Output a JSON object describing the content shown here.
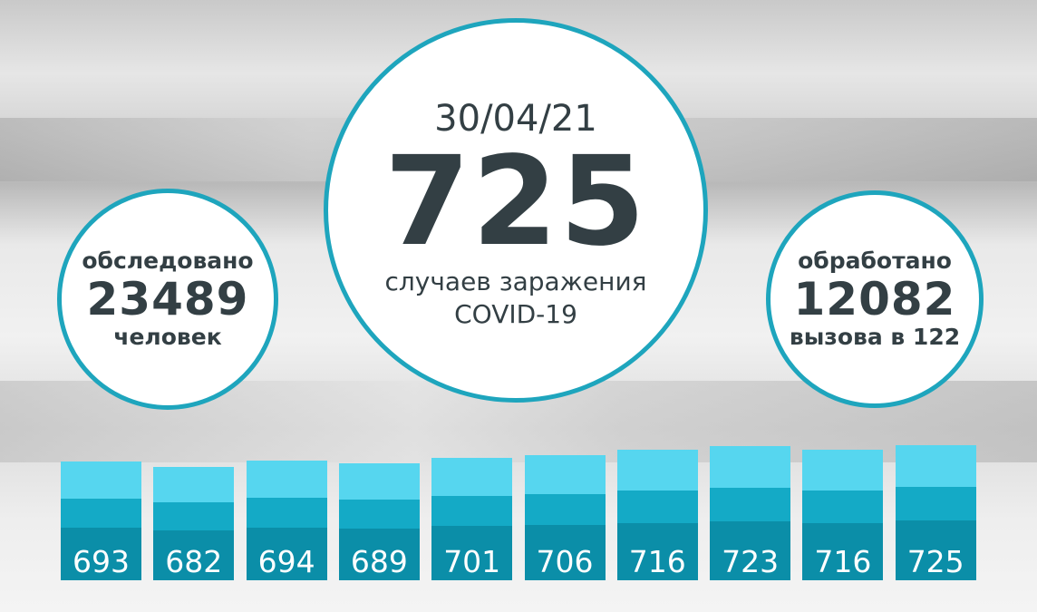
{
  "colors": {
    "accent": "#1ea5bd",
    "bar_light": "#56d6ef",
    "bar_mid": "#14aac6",
    "bar_dark": "#0b8ea8",
    "text": "#333f44"
  },
  "left": {
    "top": "обследовано",
    "value": "23489",
    "bottom": "человек"
  },
  "center": {
    "date": "30/04/21",
    "value": "725",
    "line1": "случаев заражения",
    "line2": "COVID-19"
  },
  "right": {
    "top": "обработано",
    "value": "12082",
    "bottom": "вызова в 122"
  },
  "chart_data": {
    "type": "bar",
    "values": [
      693,
      682,
      694,
      689,
      701,
      706,
      716,
      723,
      716,
      725
    ]
  }
}
